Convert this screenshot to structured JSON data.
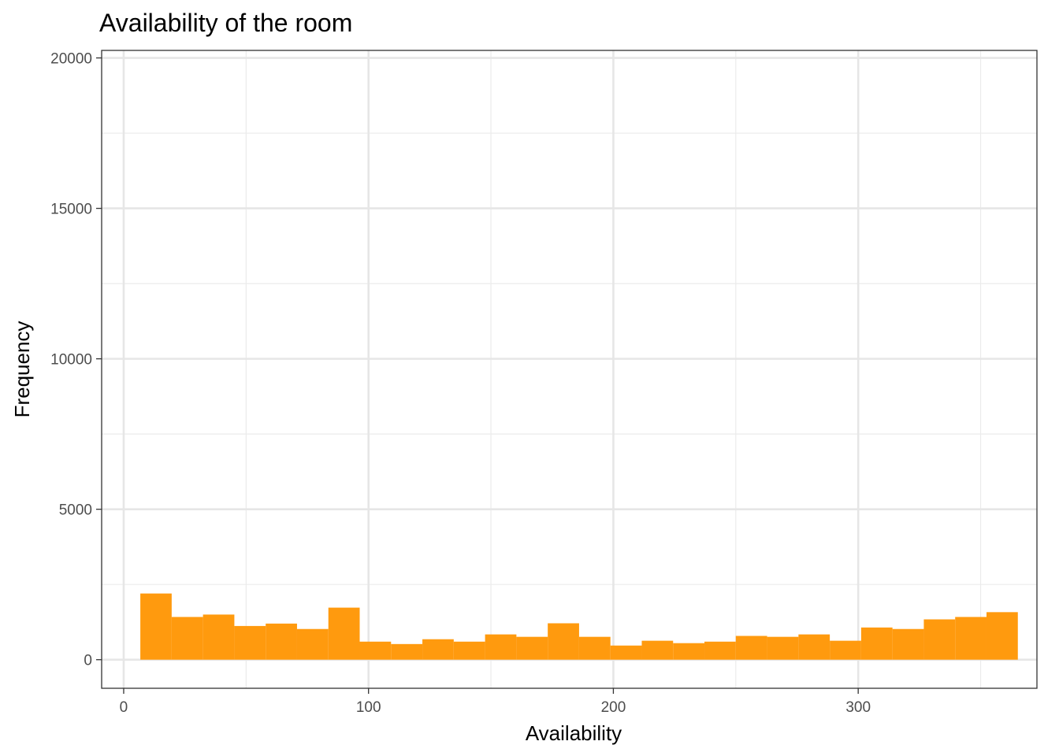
{
  "chart_data": {
    "type": "bar",
    "title": "Availability of the room",
    "xlabel": "Availability",
    "ylabel": "Frequency",
    "xlim": [
      -9,
      373
    ],
    "ylim": [
      -950,
      20250
    ],
    "x_ticks": [
      0,
      100,
      200,
      300
    ],
    "y_ticks": [
      0,
      5000,
      10000,
      15000,
      20000
    ],
    "x_minor": [
      50,
      150,
      250,
      350
    ],
    "y_minor": [
      2500,
      7500,
      12500,
      17500
    ],
    "grid": true,
    "bar_color": "#FF9A0E",
    "bins": [
      {
        "x0": 6.8,
        "x1": 19.6,
        "value": 2200
      },
      {
        "x0": 19.6,
        "x1": 32.4,
        "value": 1420
      },
      {
        "x0": 32.4,
        "x1": 45.2,
        "value": 1500
      },
      {
        "x0": 45.2,
        "x1": 58.0,
        "value": 1120
      },
      {
        "x0": 58.0,
        "x1": 70.8,
        "value": 1200
      },
      {
        "x0": 70.8,
        "x1": 83.6,
        "value": 1020
      },
      {
        "x0": 83.6,
        "x1": 96.4,
        "value": 1730
      },
      {
        "x0": 96.4,
        "x1": 109.2,
        "value": 600
      },
      {
        "x0": 109.2,
        "x1": 122.0,
        "value": 520
      },
      {
        "x0": 122.0,
        "x1": 134.8,
        "value": 680
      },
      {
        "x0": 134.8,
        "x1": 147.6,
        "value": 600
      },
      {
        "x0": 147.6,
        "x1": 160.4,
        "value": 840
      },
      {
        "x0": 160.4,
        "x1": 173.2,
        "value": 760
      },
      {
        "x0": 173.2,
        "x1": 186.0,
        "value": 1210
      },
      {
        "x0": 186.0,
        "x1": 198.8,
        "value": 760
      },
      {
        "x0": 198.8,
        "x1": 211.6,
        "value": 470
      },
      {
        "x0": 211.6,
        "x1": 224.4,
        "value": 630
      },
      {
        "x0": 224.4,
        "x1": 237.2,
        "value": 550
      },
      {
        "x0": 237.2,
        "x1": 250.0,
        "value": 600
      },
      {
        "x0": 250.0,
        "x1": 262.8,
        "value": 790
      },
      {
        "x0": 262.8,
        "x1": 275.6,
        "value": 760
      },
      {
        "x0": 275.6,
        "x1": 288.4,
        "value": 840
      },
      {
        "x0": 288.4,
        "x1": 301.2,
        "value": 630
      },
      {
        "x0": 301.2,
        "x1": 314.0,
        "value": 1070
      },
      {
        "x0": 314.0,
        "x1": 326.8,
        "value": 1020
      },
      {
        "x0": 326.8,
        "x1": 339.6,
        "value": 1340
      },
      {
        "x0": 339.6,
        "x1": 352.4,
        "value": 1420
      },
      {
        "x0": 352.4,
        "x1": 365.2,
        "value": 1580
      }
    ]
  }
}
